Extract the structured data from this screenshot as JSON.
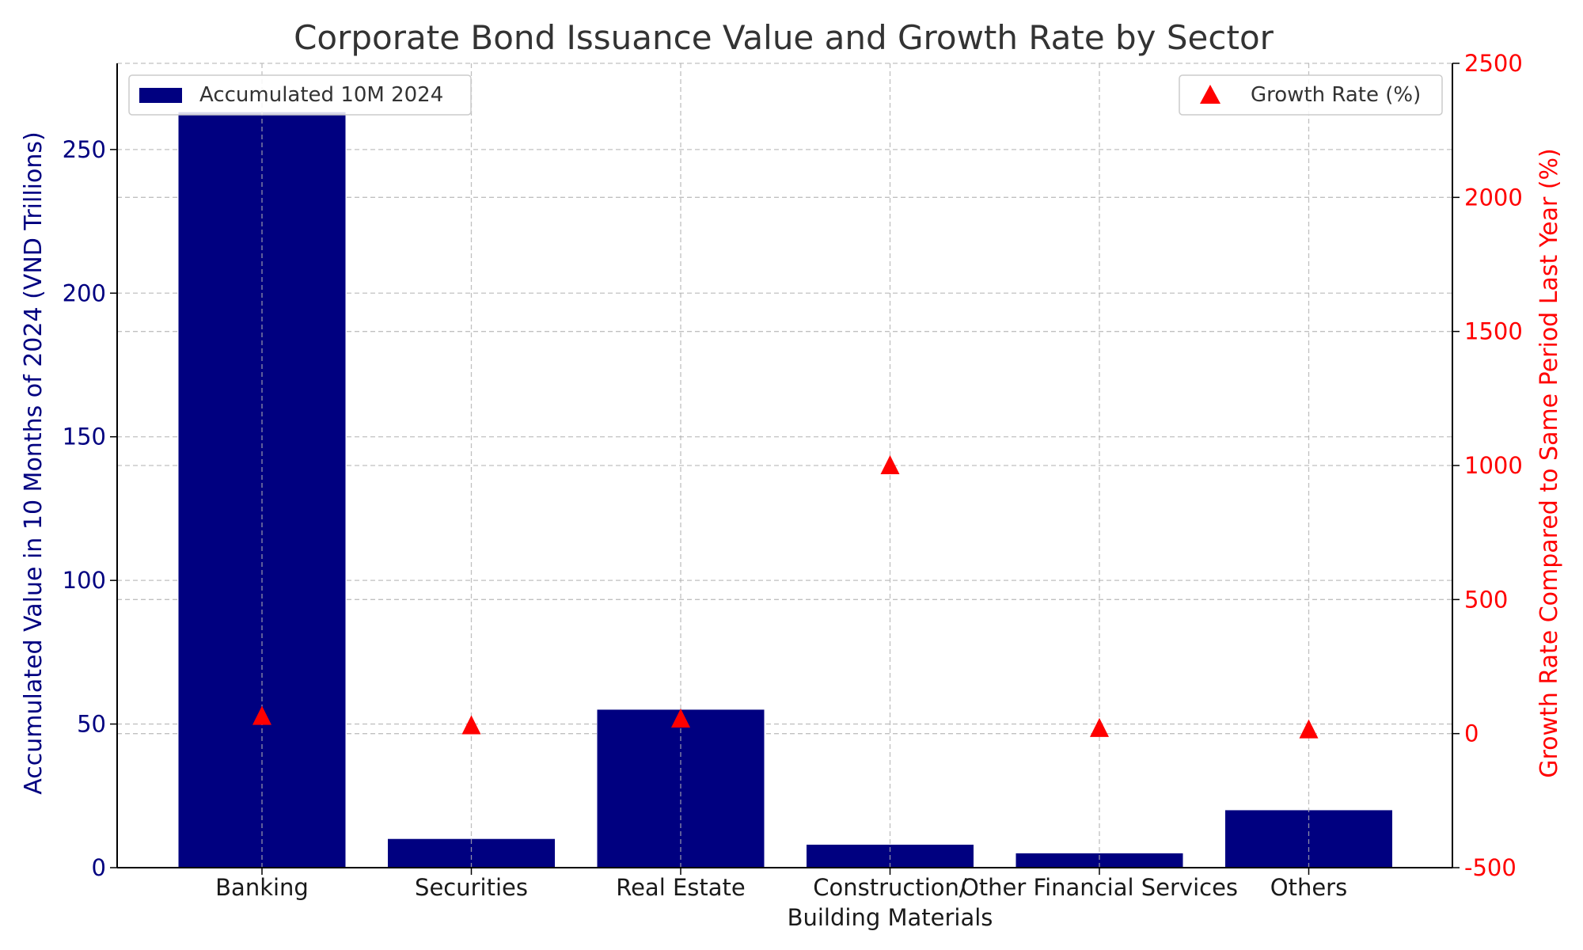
{
  "chart_data": {
    "type": "bar",
    "title": "Corporate Bond Issuance Value and Growth Rate by Sector",
    "categories": [
      [
        "Banking"
      ],
      [
        "Securities"
      ],
      [
        "Real Estate"
      ],
      [
        "Construction/",
        "Building Materials"
      ],
      [
        "Other Financial Services"
      ],
      [
        "Others"
      ]
    ],
    "xlabel": "",
    "ylabel_left": "Accumulated Value in 10 Months of 2024 (VND Trillions)",
    "ylabel_right": "Growth Rate Compared to Same Period Last Year (%)",
    "ylim_left": [
      0,
      280
    ],
    "yticks_left": [
      0,
      50,
      100,
      150,
      200,
      250
    ],
    "ylim_right": [
      -500,
      2500
    ],
    "yticks_right": [
      -500,
      0,
      500,
      1000,
      1500,
      2000,
      2500
    ],
    "grid": true,
    "series": [
      {
        "name": "Accumulated 10M 2024",
        "type": "bar",
        "axis": "left",
        "color": "#000080",
        "values": [
          263,
          10,
          55,
          8,
          5,
          20
        ]
      },
      {
        "name": "Growth Rate (%)",
        "type": "scatter",
        "marker": "triangle",
        "axis": "right",
        "color": "#ff0000",
        "values": [
          65,
          30,
          55,
          1000,
          20,
          15
        ]
      }
    ],
    "legend_left_position": "top-left",
    "legend_right_position": "top-right",
    "colors": {
      "left_axis_text": "#000080",
      "right_axis_text": "#ff0000",
      "title_text": "#333333",
      "grid": "#b0b0b0"
    }
  }
}
